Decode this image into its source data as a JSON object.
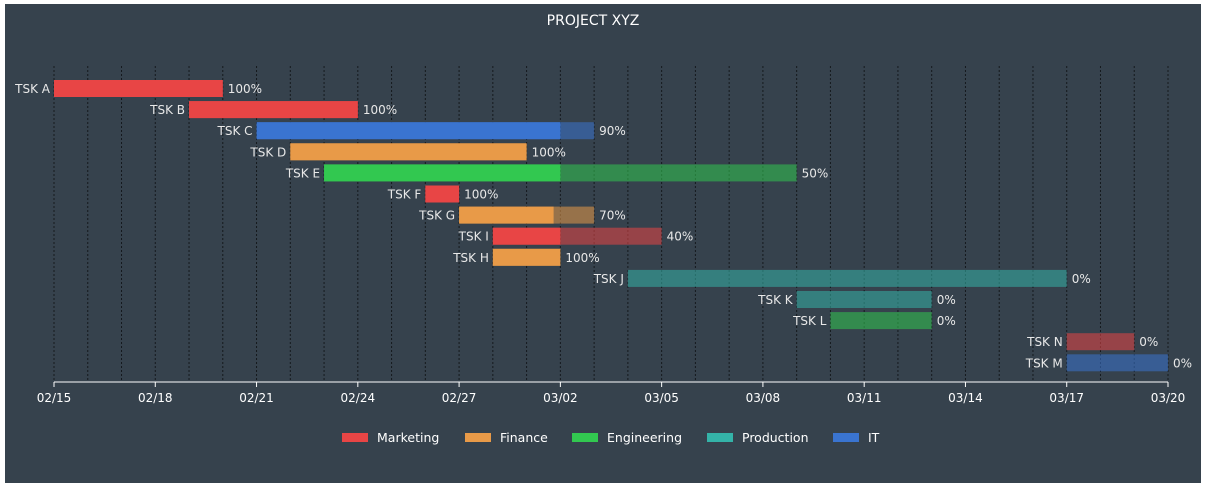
{
  "chart_data": {
    "type": "gantt",
    "title": "PROJECT XYZ",
    "x_start": "2025-02-15",
    "x_end": "2025-03-20",
    "x_tick_labels": [
      "02/15",
      "02/18",
      "02/21",
      "02/24",
      "02/27",
      "03/02",
      "03/05",
      "03/08",
      "03/11",
      "03/14",
      "03/17",
      "03/20"
    ],
    "colors": {
      "Marketing": "#e84545",
      "Finance": "#e89a48",
      "Engineering": "#32c850",
      "Production": "#34b3a8",
      "IT": "#3a74d0"
    },
    "tasks": [
      {
        "name": "TSK A",
        "department": "Marketing",
        "start": 0,
        "end": 5,
        "completion": 1.0,
        "label": "100%"
      },
      {
        "name": "TSK B",
        "department": "Marketing",
        "start": 4,
        "end": 9,
        "completion": 1.0,
        "label": "100%"
      },
      {
        "name": "TSK C",
        "department": "IT",
        "start": 6,
        "end": 16,
        "completion": 0.9,
        "label": "90%"
      },
      {
        "name": "TSK D",
        "department": "Finance",
        "start": 7,
        "end": 14,
        "completion": 1.0,
        "label": "100%"
      },
      {
        "name": "TSK E",
        "department": "Engineering",
        "start": 8,
        "end": 22,
        "completion": 0.5,
        "label": "50%"
      },
      {
        "name": "TSK F",
        "department": "Marketing",
        "start": 11,
        "end": 12,
        "completion": 1.0,
        "label": "100%"
      },
      {
        "name": "TSK G",
        "department": "Finance",
        "start": 12,
        "end": 16,
        "completion": 0.7,
        "label": "70%"
      },
      {
        "name": "TSK I",
        "department": "Marketing",
        "start": 13,
        "end": 18,
        "completion": 0.4,
        "label": "40%"
      },
      {
        "name": "TSK H",
        "department": "Finance",
        "start": 13,
        "end": 15,
        "completion": 1.0,
        "label": "100%"
      },
      {
        "name": "TSK J",
        "department": "Production",
        "start": 17,
        "end": 30,
        "completion": 0,
        "label": "0%"
      },
      {
        "name": "TSK K",
        "department": "Production",
        "start": 22,
        "end": 26,
        "completion": 0,
        "label": "0%"
      },
      {
        "name": "TSK L",
        "department": "Engineering",
        "start": 23,
        "end": 26,
        "completion": 0,
        "label": "0%"
      },
      {
        "name": "TSK N",
        "department": "Marketing",
        "start": 30,
        "end": 32,
        "completion": 0,
        "label": "0%"
      },
      {
        "name": "TSK M",
        "department": "IT",
        "start": 30,
        "end": 33,
        "completion": 0,
        "label": "0%"
      }
    ],
    "legend": [
      "Marketing",
      "Finance",
      "Engineering",
      "Production",
      "IT"
    ],
    "grid": "vertical dashed, daily",
    "legend_position": "bottom-center"
  }
}
